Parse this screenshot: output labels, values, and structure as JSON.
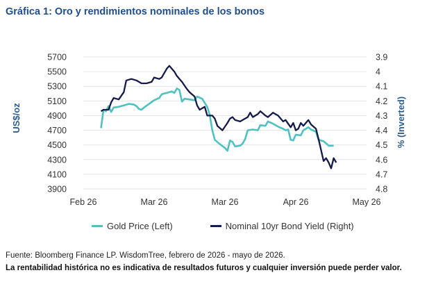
{
  "title": "Gráfica 1: Oro y rendimientos nominales de los bonos",
  "source": "Fuente: Bloomberg Finance LP. WisdomTree, febrero de 2026 - mayo de 2026.",
  "disclaimer": "La rentabilidad histórica no es indicativa de resultados futuros y cualquier inversión puede perder valor.",
  "chart_data": {
    "type": "line",
    "ylabel_left": "US$/oz",
    "ylabel_right": "% (Inverted)",
    "left_axis": {
      "min": 3900,
      "max": 5700,
      "ticks": [
        "5700",
        "5500",
        "5300",
        "5100",
        "4900",
        "4700",
        "4500",
        "4300",
        "4100",
        "3900"
      ]
    },
    "right_axis": {
      "min": 3.9,
      "max": 4.8,
      "inverted": true,
      "ticks": [
        "3.9",
        "4",
        "4.1",
        "4.2",
        "4.3",
        "4.4",
        "4.5",
        "4.6",
        "4.7",
        "4.8"
      ]
    },
    "x_ticks": [
      {
        "label": "Feb 26",
        "date": "2026-02-01"
      },
      {
        "label": "Mar 26",
        "date": "2026-03-01"
      },
      {
        "label": "Mar 26",
        "date": "2026-03-29"
      },
      {
        "label": "Apr 26",
        "date": "2026-04-26"
      },
      {
        "label": "May 26",
        "date": "2026-05-24"
      }
    ],
    "x_range": [
      "2026-02-01",
      "2026-05-24"
    ],
    "colors": {
      "gold": "#4fc1c1",
      "yield": "#141a4a"
    },
    "series": [
      {
        "name": "Gold Price (Left)",
        "axis": "left",
        "points": [
          [
            "2026-02-08",
            4730
          ],
          [
            "2026-02-09",
            4980
          ],
          [
            "2026-02-10",
            4960
          ],
          [
            "2026-02-11",
            5030
          ],
          [
            "2026-02-12",
            4950
          ],
          [
            "2026-02-13",
            5010
          ],
          [
            "2026-02-15",
            5020
          ],
          [
            "2026-02-17",
            5040
          ],
          [
            "2026-02-19",
            5060
          ],
          [
            "2026-02-21",
            5050
          ],
          [
            "2026-02-22",
            5030
          ],
          [
            "2026-02-23",
            4990
          ],
          [
            "2026-02-24",
            4980
          ],
          [
            "2026-02-25",
            5010
          ],
          [
            "2026-02-27",
            5060
          ],
          [
            "2026-03-01",
            5110
          ],
          [
            "2026-03-03",
            5140
          ],
          [
            "2026-03-04",
            5190
          ],
          [
            "2026-03-06",
            5210
          ],
          [
            "2026-03-08",
            5230
          ],
          [
            "2026-03-09",
            5210
          ],
          [
            "2026-03-10",
            5270
          ],
          [
            "2026-03-11",
            5250
          ],
          [
            "2026-03-12",
            5090
          ],
          [
            "2026-03-13",
            5130
          ],
          [
            "2026-03-15",
            5120
          ],
          [
            "2026-03-17",
            5110
          ],
          [
            "2026-03-18",
            5160
          ],
          [
            "2026-03-20",
            5130
          ],
          [
            "2026-03-22",
            5020
          ],
          [
            "2026-03-23",
            4910
          ],
          [
            "2026-03-24",
            4700
          ],
          [
            "2026-03-25",
            4570
          ],
          [
            "2026-03-27",
            4510
          ],
          [
            "2026-03-29",
            4460
          ],
          [
            "2026-03-30",
            4420
          ],
          [
            "2026-03-31",
            4560
          ],
          [
            "2026-04-01",
            4540
          ],
          [
            "2026-04-02",
            4480
          ],
          [
            "2026-04-04",
            4490
          ],
          [
            "2026-04-05",
            4520
          ],
          [
            "2026-04-06",
            4580
          ],
          [
            "2026-04-07",
            4700
          ],
          [
            "2026-04-09",
            4710
          ],
          [
            "2026-04-11",
            4700
          ],
          [
            "2026-04-12",
            4770
          ],
          [
            "2026-04-14",
            4760
          ],
          [
            "2026-04-15",
            4820
          ],
          [
            "2026-04-17",
            4790
          ],
          [
            "2026-04-19",
            4750
          ],
          [
            "2026-04-21",
            4720
          ],
          [
            "2026-04-22",
            4700
          ],
          [
            "2026-04-23",
            4710
          ],
          [
            "2026-04-24",
            4570
          ],
          [
            "2026-04-25",
            4560
          ],
          [
            "2026-04-26",
            4640
          ],
          [
            "2026-04-28",
            4630
          ],
          [
            "2026-04-29",
            4700
          ],
          [
            "2026-05-01",
            4740
          ],
          [
            "2026-05-02",
            4710
          ],
          [
            "2026-05-04",
            4680
          ],
          [
            "2026-05-05",
            4570
          ],
          [
            "2026-05-07",
            4550
          ],
          [
            "2026-05-09",
            4490
          ],
          [
            "2026-05-11",
            4490
          ]
        ]
      },
      {
        "name": "Nominal 10yr Bond Yield (Right)",
        "axis": "right",
        "points": [
          [
            "2026-02-08",
            4.27
          ],
          [
            "2026-02-09",
            4.26
          ],
          [
            "2026-02-11",
            4.26
          ],
          [
            "2026-02-12",
            4.21
          ],
          [
            "2026-02-13",
            4.18
          ],
          [
            "2026-02-15",
            4.19
          ],
          [
            "2026-02-17",
            4.14
          ],
          [
            "2026-02-18",
            4.06
          ],
          [
            "2026-02-20",
            4.05
          ],
          [
            "2026-02-22",
            4.06
          ],
          [
            "2026-02-24",
            4.08
          ],
          [
            "2026-02-26",
            4.08
          ],
          [
            "2026-02-28",
            4.07
          ],
          [
            "2026-03-01",
            4.04
          ],
          [
            "2026-03-03",
            4.05
          ],
          [
            "2026-03-04",
            4.04
          ],
          [
            "2026-03-06",
            3.98
          ],
          [
            "2026-03-07",
            3.96
          ],
          [
            "2026-03-09",
            4.0
          ],
          [
            "2026-03-10",
            4.03
          ],
          [
            "2026-03-12",
            4.07
          ],
          [
            "2026-03-14",
            4.12
          ],
          [
            "2026-03-15",
            4.14
          ],
          [
            "2026-03-17",
            4.17
          ],
          [
            "2026-03-18",
            4.23
          ],
          [
            "2026-03-19",
            4.26
          ],
          [
            "2026-03-21",
            4.24
          ],
          [
            "2026-03-22",
            4.3
          ],
          [
            "2026-03-24",
            4.3
          ],
          [
            "2026-03-25",
            4.32
          ],
          [
            "2026-03-26",
            4.37
          ],
          [
            "2026-03-28",
            4.4
          ],
          [
            "2026-03-30",
            4.35
          ],
          [
            "2026-03-31",
            4.32
          ],
          [
            "2026-04-01",
            4.31
          ],
          [
            "2026-04-02",
            4.33
          ],
          [
            "2026-04-04",
            4.34
          ],
          [
            "2026-04-05",
            4.33
          ],
          [
            "2026-04-07",
            4.31
          ],
          [
            "2026-04-08",
            4.28
          ],
          [
            "2026-04-09",
            4.31
          ],
          [
            "2026-04-11",
            4.29
          ],
          [
            "2026-04-12",
            4.27
          ],
          [
            "2026-04-14",
            4.3
          ],
          [
            "2026-04-15",
            4.31
          ],
          [
            "2026-04-17",
            4.28
          ],
          [
            "2026-04-19",
            4.3
          ],
          [
            "2026-04-21",
            4.34
          ],
          [
            "2026-04-22",
            4.33
          ],
          [
            "2026-04-24",
            4.38
          ],
          [
            "2026-04-25",
            4.35
          ],
          [
            "2026-04-26",
            4.4
          ],
          [
            "2026-04-27",
            4.39
          ],
          [
            "2026-04-28",
            4.35
          ],
          [
            "2026-04-29",
            4.37
          ],
          [
            "2026-05-01",
            4.33
          ],
          [
            "2026-05-02",
            4.36
          ],
          [
            "2026-05-04",
            4.39
          ],
          [
            "2026-05-05",
            4.46
          ],
          [
            "2026-05-07",
            4.61
          ],
          [
            "2026-05-08",
            4.59
          ],
          [
            "2026-05-09",
            4.62
          ],
          [
            "2026-05-10",
            4.66
          ],
          [
            "2026-05-11",
            4.59
          ],
          [
            "2026-05-12",
            4.62
          ]
        ]
      }
    ]
  }
}
